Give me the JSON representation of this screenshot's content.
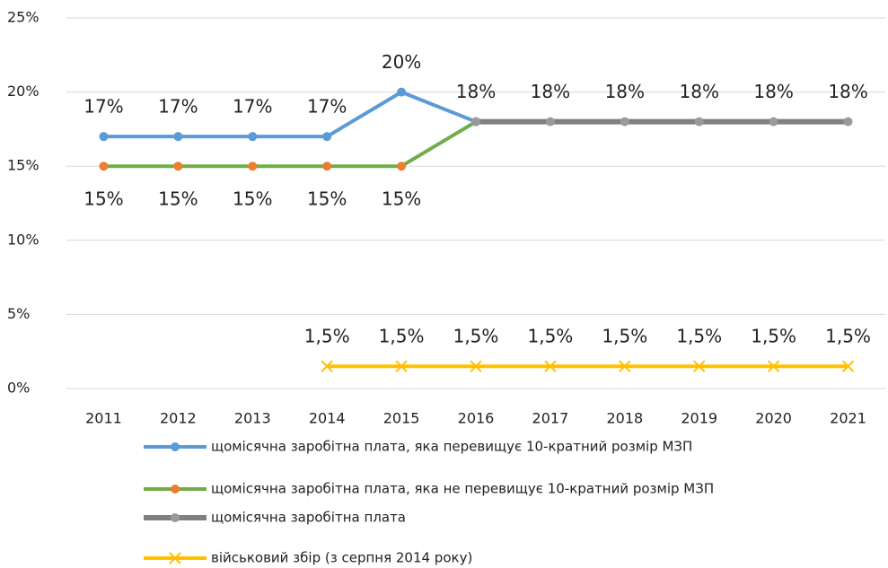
{
  "chart_data": {
    "type": "line",
    "categories": [
      "2011",
      "2012",
      "2013",
      "2014",
      "2015",
      "2016",
      "2017",
      "2018",
      "2019",
      "2020",
      "2021"
    ],
    "ylim": [
      0,
      25
    ],
    "yticks": [
      {
        "value": 0,
        "label": "0%"
      },
      {
        "value": 5,
        "label": "5%"
      },
      {
        "value": 10,
        "label": "10%"
      },
      {
        "value": 15,
        "label": "15%"
      },
      {
        "value": 20,
        "label": "20%"
      },
      {
        "value": 25,
        "label": "25%"
      }
    ],
    "grid": true,
    "legend": "bottom",
    "series": [
      {
        "name": "щомісячна  заробітна  плата, яка перевищує 10-кратний  розмір МЗП",
        "color": "#5b9bd5",
        "marker": "circle",
        "marker_color": "#5b9bd5",
        "label_position": "above",
        "values": [
          17,
          17,
          17,
          17,
          20,
          18,
          null,
          null,
          null,
          null,
          null
        ],
        "value_labels": [
          "17%",
          "17%",
          "17%",
          "17%",
          "20%",
          null,
          null,
          null,
          null,
          null,
          null
        ]
      },
      {
        "name": "щомісячна  заробітна  плата, яка не перевищує 10-кратний  розмір МЗП",
        "color": "#70ad47",
        "marker": "circle",
        "marker_color": "#ed7d31",
        "label_position": "below",
        "values": [
          15,
          15,
          15,
          15,
          15,
          18,
          null,
          null,
          null,
          null,
          null
        ],
        "value_labels": [
          "15%",
          "15%",
          "15%",
          "15%",
          "15%",
          null,
          null,
          null,
          null,
          null,
          null
        ]
      },
      {
        "name": "щомісячна  заробітна  плата",
        "color": "#808080",
        "marker": "circle",
        "marker_color": "#9a9a9a",
        "label_position": "above",
        "values": [
          null,
          null,
          null,
          null,
          null,
          18,
          18,
          18,
          18,
          18,
          18
        ],
        "value_labels": [
          null,
          null,
          null,
          null,
          null,
          "18%",
          "18%",
          "18%",
          "18%",
          "18%",
          "18%"
        ]
      },
      {
        "name": "військовий  збір  (з серпня  2014 року)",
        "color": "#ffc000",
        "marker": "x",
        "marker_color": "#ffc000",
        "label_position": "above",
        "values": [
          null,
          null,
          null,
          1.5,
          1.5,
          1.5,
          1.5,
          1.5,
          1.5,
          1.5,
          1.5
        ],
        "value_labels": [
          null,
          null,
          null,
          "1,5%",
          "1,5%",
          "1,5%",
          "1,5%",
          "1,5%",
          "1,5%",
          "1,5%",
          "1,5%"
        ]
      }
    ]
  }
}
